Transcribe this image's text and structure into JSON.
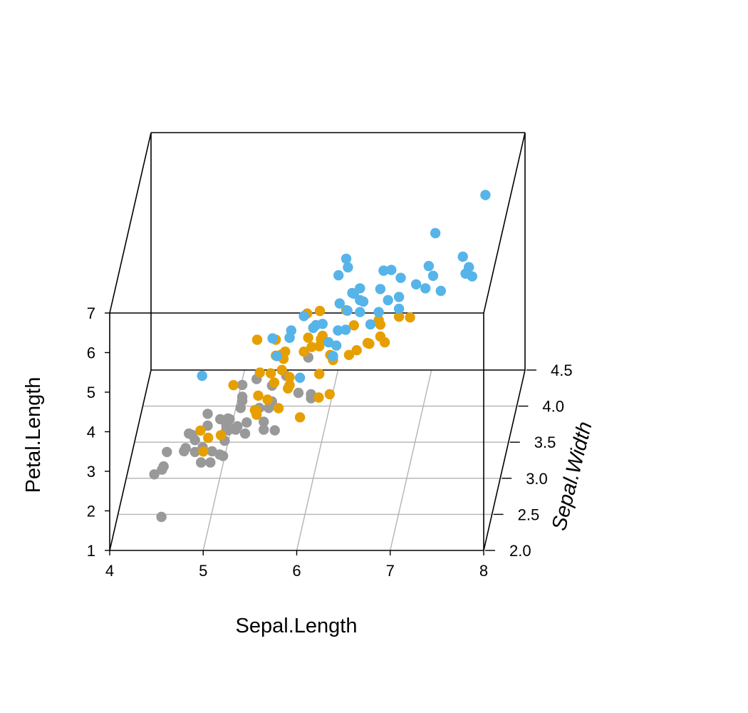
{
  "chart_data": {
    "type": "scatter3d",
    "title": "",
    "xlabel": "Sepal.Length",
    "ylabel": "Sepal.Width",
    "zlabel": "Petal.Length",
    "xlim": [
      4,
      8
    ],
    "ylim": [
      2.0,
      4.5
    ],
    "zlim": [
      1,
      7
    ],
    "xticks": [
      "4",
      "5",
      "6",
      "7",
      "8"
    ],
    "yticks": [
      "2.0",
      "2.5",
      "3.0",
      "3.5",
      "4.0",
      "4.5"
    ],
    "zticks": [
      "1",
      "2",
      "3",
      "4",
      "5",
      "6",
      "7"
    ],
    "grid": true,
    "series": [
      {
        "color": "#999999",
        "points": [
          [
            4.3,
            3.0,
            1.1
          ],
          [
            4.4,
            2.9,
            1.4
          ],
          [
            4.4,
            3.0,
            1.3
          ],
          [
            4.4,
            3.2,
            1.3
          ],
          [
            4.5,
            2.3,
            1.3
          ],
          [
            4.6,
            3.1,
            1.5
          ],
          [
            4.6,
            3.4,
            1.4
          ],
          [
            4.6,
            3.6,
            1.0
          ],
          [
            4.6,
            3.2,
            1.4
          ],
          [
            4.7,
            3.2,
            1.3
          ],
          [
            4.7,
            3.2,
            1.6
          ],
          [
            4.8,
            3.4,
            1.6
          ],
          [
            4.8,
            3.0,
            1.4
          ],
          [
            4.8,
            3.4,
            1.9
          ],
          [
            4.8,
            3.1,
            1.6
          ],
          [
            4.8,
            3.0,
            1.4
          ],
          [
            4.9,
            3.0,
            1.4
          ],
          [
            4.9,
            3.1,
            1.5
          ],
          [
            4.9,
            3.6,
            1.4
          ],
          [
            5.0,
            3.6,
            1.4
          ],
          [
            5.0,
            3.4,
            1.5
          ],
          [
            5.0,
            3.0,
            1.6
          ],
          [
            5.0,
            3.4,
            1.6
          ],
          [
            5.0,
            3.2,
            1.2
          ],
          [
            5.0,
            3.5,
            1.3
          ],
          [
            5.0,
            3.5,
            1.6
          ],
          [
            5.0,
            3.3,
            1.4
          ],
          [
            5.1,
            3.5,
            1.4
          ],
          [
            5.1,
            3.5,
            1.4
          ],
          [
            5.1,
            3.8,
            1.5
          ],
          [
            5.1,
            3.7,
            1.5
          ],
          [
            5.1,
            3.3,
            1.7
          ],
          [
            5.1,
            3.4,
            1.5
          ],
          [
            5.1,
            3.8,
            1.9
          ],
          [
            5.1,
            3.8,
            1.6
          ],
          [
            5.2,
            3.5,
            1.5
          ],
          [
            5.2,
            3.4,
            1.4
          ],
          [
            5.2,
            4.1,
            1.5
          ],
          [
            5.3,
            3.7,
            1.5
          ],
          [
            5.4,
            3.9,
            1.7
          ],
          [
            5.4,
            3.7,
            1.5
          ],
          [
            5.4,
            3.9,
            1.3
          ],
          [
            5.4,
            3.4,
            1.7
          ],
          [
            5.4,
            3.4,
            1.5
          ],
          [
            5.5,
            4.2,
            1.4
          ],
          [
            5.5,
            3.5,
            1.3
          ],
          [
            5.7,
            4.4,
            1.5
          ],
          [
            5.7,
            3.8,
            1.7
          ],
          [
            5.8,
            4.0,
            1.2
          ],
          [
            5.8,
            4.0,
            1.3
          ]
        ]
      },
      {
        "color": "#E69F00",
        "points": [
          [
            4.9,
            2.4,
            3.3
          ],
          [
            5.0,
            2.0,
            3.5
          ],
          [
            5.0,
            2.3,
            3.3
          ],
          [
            5.1,
            2.5,
            3.0
          ],
          [
            5.2,
            2.7,
            3.9
          ],
          [
            5.4,
            3.0,
            4.5
          ],
          [
            5.5,
            2.3,
            4.0
          ],
          [
            5.5,
            2.4,
            3.8
          ],
          [
            5.5,
            2.4,
            3.7
          ],
          [
            5.5,
            2.5,
            4.0
          ],
          [
            5.5,
            2.6,
            4.4
          ],
          [
            5.6,
            2.9,
            3.6
          ],
          [
            5.6,
            3.0,
            4.5
          ],
          [
            5.6,
            2.5,
            3.9
          ],
          [
            5.6,
            3.0,
            4.1
          ],
          [
            5.6,
            2.7,
            4.2
          ],
          [
            5.7,
            2.8,
            4.5
          ],
          [
            5.7,
            2.6,
            3.5
          ],
          [
            5.7,
            3.0,
            4.2
          ],
          [
            5.7,
            2.9,
            4.2
          ],
          [
            5.7,
            2.8,
            4.1
          ],
          [
            5.8,
            2.7,
            4.1
          ],
          [
            5.8,
            2.7,
            3.9
          ],
          [
            5.8,
            2.6,
            4.0
          ],
          [
            5.9,
            3.0,
            4.2
          ],
          [
            5.9,
            3.2,
            4.8
          ],
          [
            6.0,
            2.2,
            4.0
          ],
          [
            6.0,
            2.9,
            4.5
          ],
          [
            6.0,
            2.7,
            5.1
          ],
          [
            6.0,
            3.4,
            4.5
          ],
          [
            6.1,
            2.9,
            4.7
          ],
          [
            6.1,
            2.8,
            4.0
          ],
          [
            6.1,
            2.8,
            4.7
          ],
          [
            6.1,
            3.0,
            4.6
          ],
          [
            6.2,
            2.2,
            4.5
          ],
          [
            6.2,
            2.9,
            4.3
          ],
          [
            6.3,
            3.3,
            4.7
          ],
          [
            6.3,
            2.5,
            4.9
          ],
          [
            6.3,
            2.3,
            4.4
          ],
          [
            6.4,
            3.2,
            4.5
          ],
          [
            6.4,
            2.9,
            4.3
          ],
          [
            6.5,
            2.8,
            4.6
          ],
          [
            6.6,
            2.9,
            4.6
          ],
          [
            6.6,
            3.0,
            4.4
          ],
          [
            6.7,
            3.1,
            4.4
          ],
          [
            6.7,
            3.0,
            5.0
          ],
          [
            6.7,
            3.1,
            4.7
          ],
          [
            6.8,
            2.8,
            4.8
          ],
          [
            6.9,
            3.1,
            4.9
          ],
          [
            7.0,
            3.2,
            4.7
          ]
        ]
      },
      {
        "color": "#56B4E9",
        "points": [
          [
            4.9,
            2.5,
            4.5
          ],
          [
            5.6,
            2.8,
            4.9
          ],
          [
            5.7,
            2.5,
            5.0
          ],
          [
            5.8,
            2.7,
            5.1
          ],
          [
            5.8,
            2.8,
            5.1
          ],
          [
            5.8,
            2.7,
            5.1
          ],
          [
            5.9,
            3.0,
            5.1
          ],
          [
            6.0,
            2.2,
            5.0
          ],
          [
            6.0,
            3.0,
            4.8
          ],
          [
            6.1,
            3.0,
            4.9
          ],
          [
            6.1,
            2.6,
            5.6
          ],
          [
            6.2,
            2.8,
            4.8
          ],
          [
            6.2,
            3.4,
            5.4
          ],
          [
            6.3,
            3.3,
            6.0
          ],
          [
            6.3,
            2.9,
            5.6
          ],
          [
            6.3,
            2.5,
            5.0
          ],
          [
            6.3,
            2.7,
            4.9
          ],
          [
            6.3,
            2.8,
            5.1
          ],
          [
            6.3,
            3.4,
            5.6
          ],
          [
            6.3,
            2.5,
            5.0
          ],
          [
            6.4,
            2.7,
            5.3
          ],
          [
            6.4,
            3.2,
            5.3
          ],
          [
            6.4,
            2.8,
            5.6
          ],
          [
            6.4,
            2.8,
            5.6
          ],
          [
            6.4,
            3.1,
            5.5
          ],
          [
            6.5,
            3.0,
            5.8
          ],
          [
            6.5,
            3.2,
            5.1
          ],
          [
            6.5,
            3.0,
            5.5
          ],
          [
            6.5,
            3.0,
            5.2
          ],
          [
            6.7,
            3.3,
            5.7
          ],
          [
            6.7,
            2.5,
            5.8
          ],
          [
            6.7,
            3.1,
            5.6
          ],
          [
            6.7,
            3.3,
            5.7
          ],
          [
            6.7,
            3.0,
            5.2
          ],
          [
            6.8,
            3.0,
            5.5
          ],
          [
            6.8,
            3.2,
            5.9
          ],
          [
            6.9,
            3.2,
            5.7
          ],
          [
            6.9,
            3.1,
            5.4
          ],
          [
            6.9,
            3.1,
            5.1
          ],
          [
            7.1,
            3.0,
            5.9
          ],
          [
            7.2,
            3.6,
            6.1
          ],
          [
            7.2,
            3.2,
            6.0
          ],
          [
            7.2,
            3.0,
            5.8
          ],
          [
            7.3,
            2.9,
            6.3
          ],
          [
            7.4,
            2.8,
            6.1
          ],
          [
            7.6,
            3.0,
            6.6
          ],
          [
            7.7,
            3.8,
            6.7
          ],
          [
            7.7,
            2.6,
            6.9
          ],
          [
            7.7,
            2.8,
            6.7
          ],
          [
            7.7,
            3.0,
            6.1
          ]
        ]
      }
    ]
  }
}
